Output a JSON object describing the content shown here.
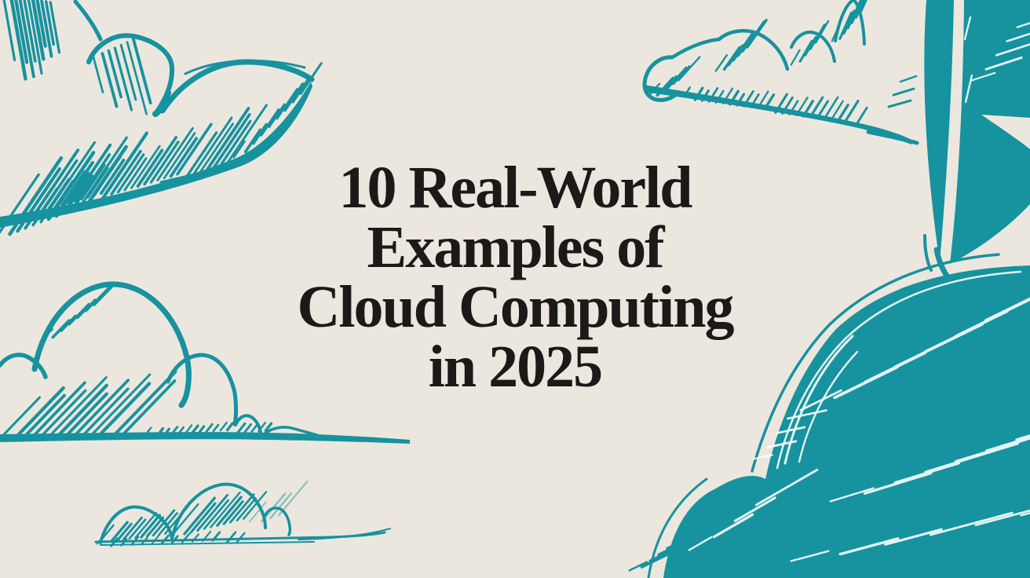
{
  "colors": {
    "teal": "#17929f",
    "background": "#ECE7DE",
    "ink": "#1B1A18",
    "streak": "#FAFFFE"
  },
  "title": {
    "full": "10 Real-World Examples of Cloud Computing in 2025",
    "lines": [
      "10 Real-World",
      "Examples of",
      "Cloud Computing",
      "in 2025"
    ]
  },
  "illustration": {
    "style": "hand-drawn teal sketch clouds on cream background",
    "elements": [
      "sketch-cloud-top-left",
      "sketch-cloud-middle-left",
      "sketch-cloud-bottom-left",
      "sketch-cloud-top-right",
      "solid-leaf-shape-top-right",
      "solid-cloud-bottom-right"
    ]
  }
}
